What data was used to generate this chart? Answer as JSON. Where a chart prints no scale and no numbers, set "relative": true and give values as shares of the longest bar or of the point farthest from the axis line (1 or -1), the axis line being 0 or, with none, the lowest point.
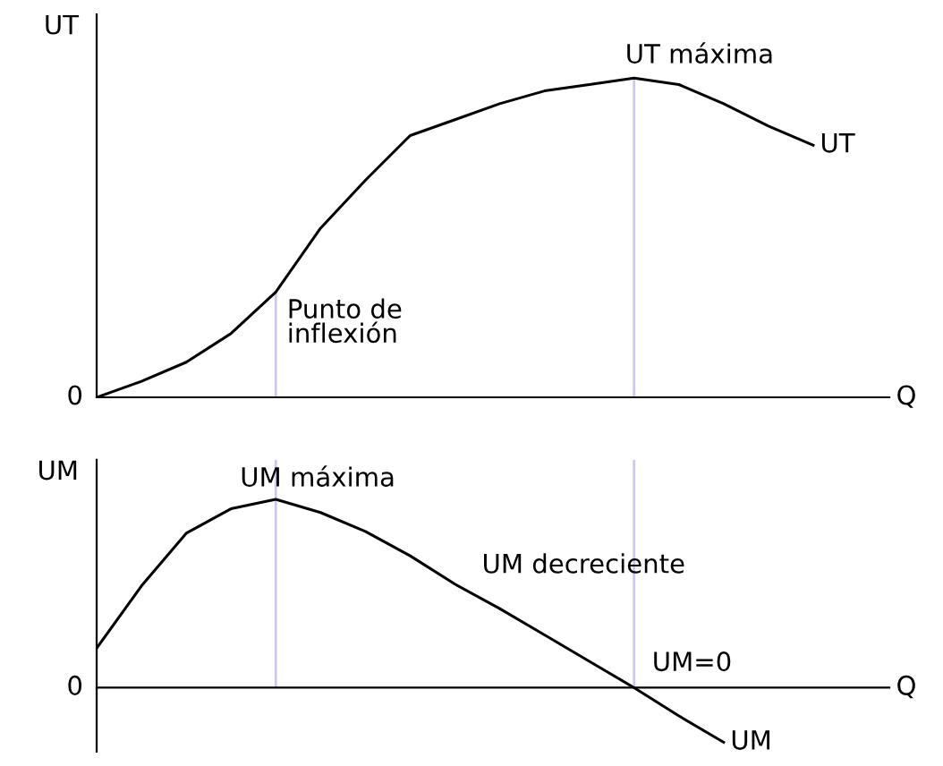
{
  "chart_data": [
    {
      "type": "line",
      "relative": true,
      "ylabel": "UT",
      "xlabel": "Q",
      "categories": [
        null,
        null,
        null,
        null,
        null,
        null,
        null,
        null,
        null,
        null,
        null,
        null,
        null,
        null,
        null,
        null,
        null
      ],
      "series": [
        {
          "name": "UT",
          "color": "#000000",
          "values": [
            0,
            0.05,
            0.11,
            0.2,
            0.33,
            0.53,
            0.68,
            0.82,
            0.87,
            0.92,
            0.96,
            0.98,
            1,
            0.98,
            0.92,
            0.85,
            0.79
          ]
        }
      ],
      "annotations": [
        "0",
        "UT máxima",
        "Punto de\ninflexión"
      ],
      "grid": false,
      "legend": false,
      "marker": "none",
      "line_style": "solid"
    },
    {
      "type": "line",
      "relative": true,
      "ylabel": "UM",
      "xlabel": "Q",
      "categories": [
        null,
        null,
        null,
        null,
        null,
        null,
        null,
        null,
        null,
        null,
        null,
        null,
        null,
        null,
        null,
        null,
        null
      ],
      "series": [
        {
          "name": "UM",
          "color": "#000000",
          "values": [
            0.21,
            0.54,
            0.82,
            0.95,
            1,
            0.93,
            0.83,
            0.7,
            0.55,
            0.42,
            0.28,
            0.14,
            0,
            -0.15,
            -0.29,
            null,
            null
          ]
        }
      ],
      "annotations": [
        "0",
        "UM máxima",
        "UM decreciente",
        "UM=0"
      ],
      "grid": false,
      "legend": false,
      "marker": "none",
      "line_style": "solid"
    }
  ]
}
